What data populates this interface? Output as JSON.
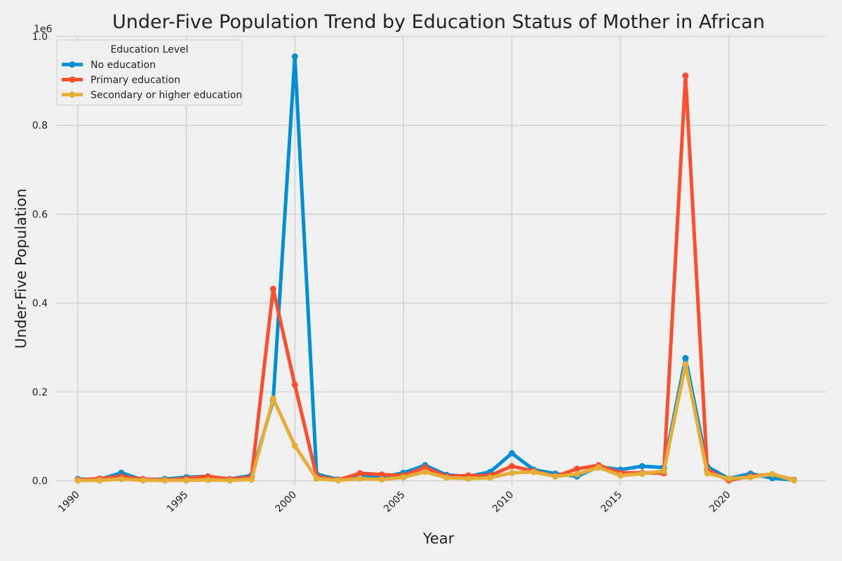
{
  "chart_data": {
    "type": "line",
    "title": "Under-Five Population Trend by Education Status of Mother in African",
    "xlabel": "Year",
    "ylabel": "Under-Five Population",
    "y_offset_label": "1e6",
    "xlim": [
      1989,
      2024.5
    ],
    "ylim": [
      -0.01,
      1.0
    ],
    "x_ticks": [
      1990,
      1995,
      2000,
      2005,
      2010,
      2015,
      2020
    ],
    "y_ticks": [
      0.0,
      0.2,
      0.4,
      0.6,
      0.8,
      1.0
    ],
    "y_tick_labels": [
      "0.0",
      "0.2",
      "0.4",
      "0.6",
      "0.8",
      "1.0"
    ],
    "grid": true,
    "legend": {
      "title": "Education Level",
      "position": "top-left"
    },
    "x": [
      1990,
      1991,
      1992,
      1993,
      1994,
      1995,
      1996,
      1997,
      1998,
      1999,
      2000,
      2001,
      2002,
      2003,
      2004,
      2005,
      2006,
      2007,
      2008,
      2009,
      2010,
      2011,
      2012,
      2013,
      2014,
      2015,
      2016,
      2017,
      2018,
      2019,
      2020,
      2021,
      2022,
      2023
    ],
    "series": [
      {
        "name": "No education",
        "color": "#008fd5",
        "values": [
          0.004,
          0.003,
          0.018,
          0.002,
          0.004,
          0.008,
          0.01,
          0.004,
          0.012,
          0.18,
          0.955,
          0.015,
          0.003,
          0.01,
          0.008,
          0.018,
          0.035,
          0.013,
          0.01,
          0.02,
          0.062,
          0.025,
          0.016,
          0.01,
          0.032,
          0.025,
          0.033,
          0.03,
          0.276,
          0.032,
          0.005,
          0.016,
          0.006,
          0.002
        ]
      },
      {
        "name": "Primary education",
        "color": "#fc4f30",
        "values": [
          0.002,
          0.005,
          0.01,
          0.004,
          0.002,
          0.005,
          0.01,
          0.004,
          0.008,
          0.432,
          0.216,
          0.01,
          0.002,
          0.017,
          0.014,
          0.012,
          0.03,
          0.01,
          0.012,
          0.012,
          0.033,
          0.022,
          0.01,
          0.027,
          0.035,
          0.018,
          0.018,
          0.017,
          0.912,
          0.025,
          0.001,
          0.01,
          0.015,
          0.002
        ]
      },
      {
        "name": "Secondary or higher education",
        "color": "#e5ae38",
        "values": [
          0.001,
          0.001,
          0.004,
          0.001,
          0.001,
          0.001,
          0.002,
          0.001,
          0.003,
          0.185,
          0.079,
          0.005,
          0.001,
          0.005,
          0.003,
          0.008,
          0.02,
          0.007,
          0.005,
          0.007,
          0.018,
          0.02,
          0.01,
          0.015,
          0.03,
          0.012,
          0.016,
          0.022,
          0.262,
          0.017,
          0.005,
          0.008,
          0.015,
          0.001
        ]
      }
    ]
  }
}
